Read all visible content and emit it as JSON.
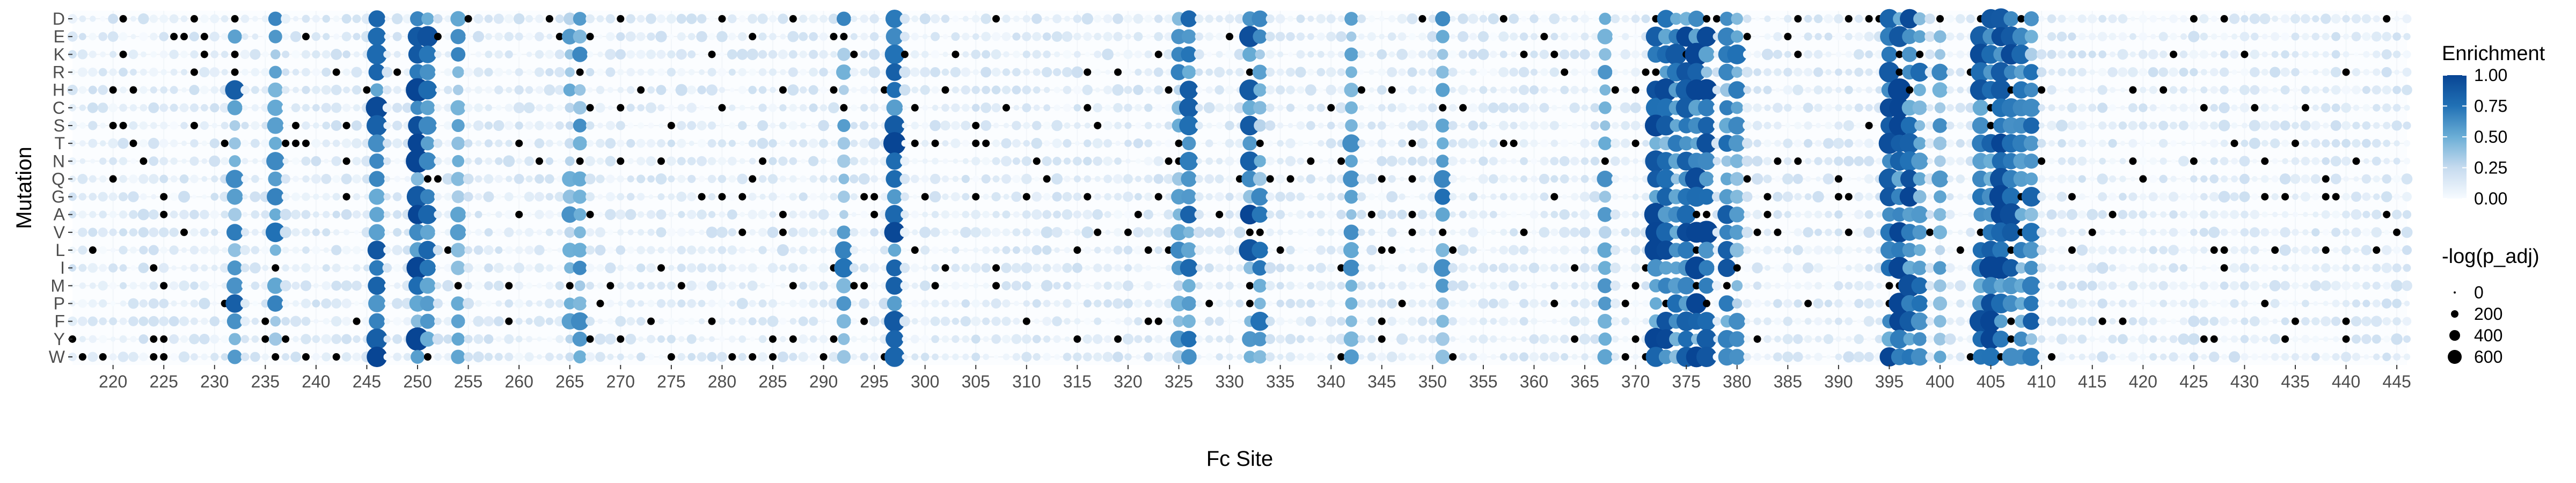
{
  "chart_data": {
    "type": "scatter",
    "subtype": "dot-heatmap",
    "xlabel": "Fc Site",
    "ylabel": "Mutation",
    "x_range": [
      216,
      446
    ],
    "x_ticks": [
      220,
      225,
      230,
      235,
      240,
      245,
      250,
      255,
      260,
      265,
      270,
      275,
      280,
      285,
      290,
      295,
      300,
      305,
      310,
      315,
      320,
      325,
      330,
      335,
      340,
      345,
      350,
      355,
      360,
      365,
      370,
      375,
      380,
      385,
      390,
      395,
      400,
      405,
      410,
      415,
      420,
      425,
      430,
      435,
      440,
      445
    ],
    "y_categories": [
      "D",
      "E",
      "K",
      "R",
      "H",
      "C",
      "S",
      "T",
      "N",
      "Q",
      "G",
      "A",
      "V",
      "L",
      "I",
      "M",
      "P",
      "F",
      "Y",
      "W"
    ],
    "grid": true,
    "legend_position": "right",
    "color_legend": {
      "title": "Enrichment",
      "ticks": [
        "1.00",
        "0.75",
        "0.50",
        "0.25",
        "0.00"
      ],
      "tick_values": [
        1.0,
        0.75,
        0.5,
        0.25,
        0.0
      ],
      "low_color": "#f7fbff",
      "high_color": "#084594"
    },
    "size_legend": {
      "title": "-log(p_adj)",
      "labels": [
        "0",
        "200",
        "400",
        "600"
      ],
      "values": [
        0,
        200,
        400,
        600
      ]
    },
    "significant_color": "#000000",
    "hotspot_sites": {
      "254": 0.55,
      "265": 0.45,
      "266": 0.5,
      "292": 0.55,
      "297": 0.85,
      "325": 0.5,
      "326": 0.8,
      "332": 0.85,
      "333": 0.6,
      "342": 0.6,
      "351": 0.65,
      "367": 0.55,
      "372": 1.0,
      "373": 0.9,
      "374": 0.7,
      "375": 0.85,
      "376": 1.0,
      "377": 0.9,
      "379": 0.8,
      "380": 0.6,
      "395": 1.0,
      "396": 0.95,
      "397": 0.9,
      "398": 0.7,
      "400": 0.5,
      "404": 0.9,
      "405": 1.0,
      "406": 0.95,
      "407": 0.85,
      "408": 0.8,
      "409": 0.7
    },
    "note_sites": {
      "246": 0.9,
      "250": 0.95,
      "251": 0.75,
      "236": 0.6,
      "232": 0.7
    }
  }
}
